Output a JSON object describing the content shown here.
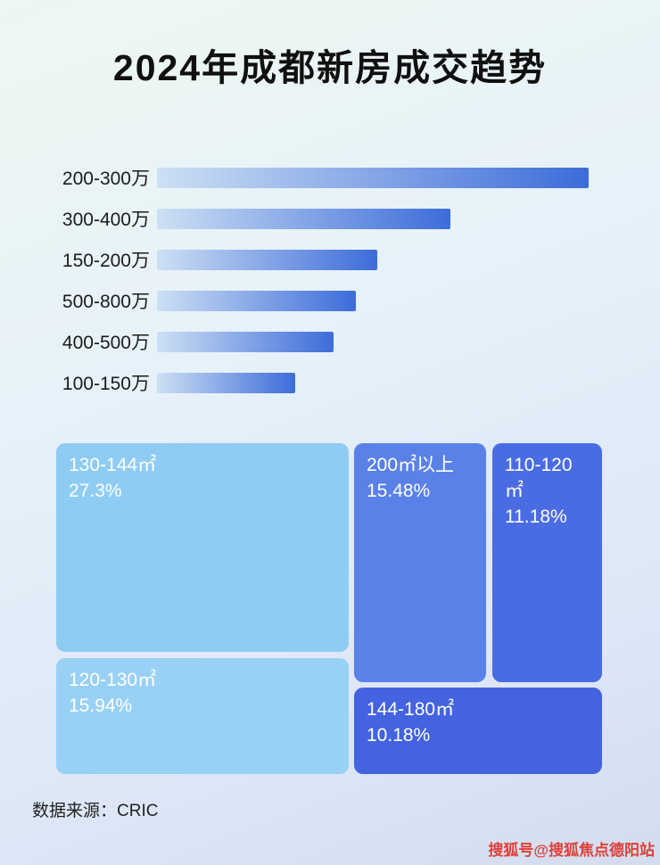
{
  "page": {
    "title": "2024年成都新房成交趋势",
    "source": "数据来源：CRIC",
    "watermark": "搜狐号@搜狐焦点德阳站"
  },
  "colors": {
    "bar_gradient_start": "#cde0f4",
    "bar_gradient_end": "#3d6cd9",
    "title_text": "#101010",
    "treemap_text": "#ffffff",
    "watermark_red": "#df3f38"
  },
  "chart_data": [
    {
      "type": "bar",
      "orientation": "horizontal",
      "title": "2024年成都新房成交趋势",
      "categories": [
        "200-300万",
        "300-400万",
        "150-200万",
        "500-800万",
        "400-500万",
        "100-150万"
      ],
      "values": [
        100,
        68,
        51,
        46,
        41,
        32
      ],
      "value_note": "no numeric labels shown; values are relative bar lengths estimated from pixels (longest bar = 100)",
      "xlabel": "",
      "ylabel": "",
      "xlim": [
        0,
        100
      ],
      "grid": false,
      "legend": false
    },
    {
      "type": "treemap",
      "title": "",
      "items": [
        {
          "label": "130-144㎡",
          "value": "27.3%",
          "color": "#8fccf3"
        },
        {
          "label": "200㎡以上",
          "value": "15.48%",
          "color": "#5a81e8"
        },
        {
          "label": "110-120㎡",
          "value": "11.18%",
          "color": "#4a6ce3"
        },
        {
          "label": "120-130㎡",
          "value": "15.94%",
          "color": "#99d1f5"
        },
        {
          "label": "144-180㎡",
          "value": "10.18%",
          "color": "#4463e0"
        }
      ]
    }
  ]
}
